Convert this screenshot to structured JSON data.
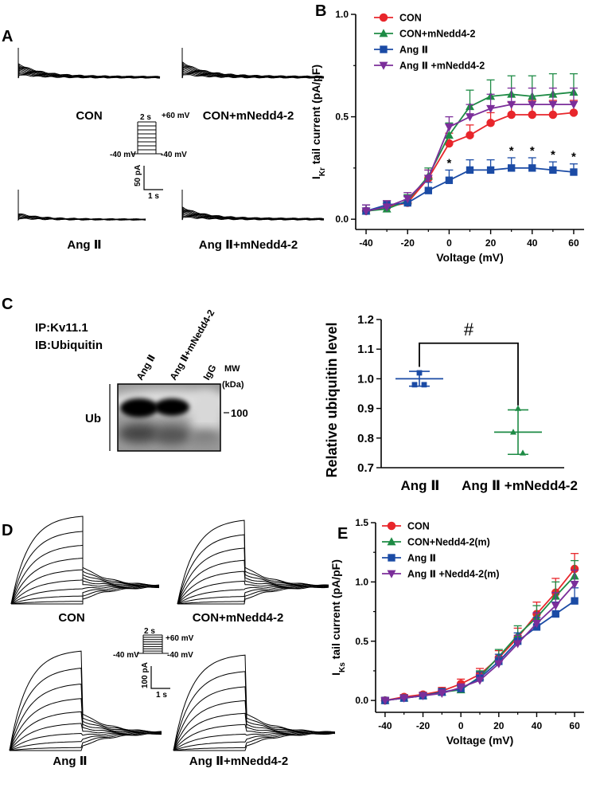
{
  "panels": {
    "A": "A",
    "B": "B",
    "C": "C",
    "D": "D",
    "E": "E"
  },
  "panelA": {
    "labels": [
      "CON",
      "CON+mNedd4-2",
      "Ang Ⅱ",
      "Ang Ⅱ+mNedd4-2"
    ],
    "protocol": {
      "duration": "2 s",
      "top": "+60 mV",
      "hold_left": "-40 mV",
      "hold_right": "-40 mV"
    },
    "scale": {
      "current": "50 pA",
      "time": "1 s"
    }
  },
  "panelD": {
    "labels": [
      "CON",
      "CON+mNedd4-2",
      "Ang Ⅱ",
      "Ang Ⅱ+mNedd4-2"
    ],
    "protocol": {
      "duration": "2 s",
      "top": "+60 mV",
      "hold_left": "-40 mV",
      "hold_right": "-40 mV"
    },
    "scale": {
      "current": "100 pA",
      "time": "1 s"
    }
  },
  "panelC": {
    "ip": "IP:Kv11.1",
    "ib": "IB:Ubiquitin",
    "lanes": [
      "Ang Ⅱ",
      "Ang Ⅱ+mNedd4-2",
      "IgG"
    ],
    "mw": "MW",
    "kda": "(kDa)",
    "marker": "100",
    "ub": "Ub"
  },
  "chart_data": [
    {
      "id": "B",
      "type": "line",
      "xlabel": "Voltage (mV)",
      "ylabel_main": "I",
      "ylabel_sub": "Kr",
      "ylabel_rest": " tail current (pA/pF)",
      "xlim": [
        -45,
        65
      ],
      "ylim": [
        -0.05,
        1.0
      ],
      "xticks": [
        -40,
        -20,
        0,
        20,
        40,
        60
      ],
      "yticks": [
        0.0,
        0.5,
        1.0
      ],
      "ytick_labels": [
        "0.0",
        "0.5",
        "1.0"
      ],
      "x": [
        -40,
        -30,
        -20,
        -10,
        0,
        10,
        20,
        30,
        40,
        50,
        60
      ],
      "significance": {
        "symbol": "*",
        "x": [
          0,
          30,
          40,
          50,
          60
        ]
      },
      "series": [
        {
          "name": "CON",
          "color": "#e8262b",
          "marker": "circle",
          "values": [
            0.04,
            0.06,
            0.08,
            0.2,
            0.37,
            0.41,
            0.47,
            0.51,
            0.51,
            0.51,
            0.52
          ],
          "err": [
            0.03,
            0.03,
            0.03,
            0.04,
            0.05,
            0.05,
            0.05,
            0.06,
            0.07,
            0.07,
            0.06
          ]
        },
        {
          "name": "CON+mNedd4-2",
          "color": "#1e8b45",
          "marker": "triangle",
          "values": [
            0.04,
            0.05,
            0.09,
            0.21,
            0.41,
            0.55,
            0.6,
            0.61,
            0.6,
            0.61,
            0.62
          ],
          "err": [
            0.03,
            0.03,
            0.03,
            0.04,
            0.06,
            0.08,
            0.08,
            0.09,
            0.1,
            0.1,
            0.09
          ]
        },
        {
          "name": "Ang Ⅱ",
          "color": "#1b4ba5",
          "marker": "square",
          "values": [
            0.04,
            0.07,
            0.08,
            0.14,
            0.19,
            0.24,
            0.24,
            0.25,
            0.25,
            0.24,
            0.23
          ],
          "err": [
            0.03,
            0.02,
            0.03,
            0.04,
            0.05,
            0.05,
            0.05,
            0.05,
            0.05,
            0.04,
            0.04
          ]
        },
        {
          "name": "Ang Ⅱ +mNedd4-2",
          "color": "#7b2e9a",
          "marker": "tri-down",
          "values": [
            0.04,
            0.06,
            0.1,
            0.2,
            0.45,
            0.5,
            0.54,
            0.56,
            0.56,
            0.56,
            0.56
          ],
          "err": [
            0.03,
            0.03,
            0.03,
            0.04,
            0.05,
            0.06,
            0.07,
            0.08,
            0.08,
            0.08,
            0.08
          ]
        }
      ]
    },
    {
      "id": "C",
      "type": "scatter",
      "title": "#",
      "ylabel": "Relative ubiquitin level",
      "ylim": [
        0.7,
        1.2
      ],
      "yticks": [
        0.7,
        0.8,
        0.9,
        1.0,
        1.1,
        1.2
      ],
      "ytick_labels": [
        "0.7",
        "0.8",
        "0.9",
        "1.0",
        "1.1",
        "1.2"
      ],
      "categories": [
        "Ang Ⅱ",
        "Ang Ⅱ +mNedd4-2"
      ],
      "groups": [
        {
          "color": "#1b4ba5",
          "marker": "square",
          "points": [
            1.02,
            0.98,
            0.98
          ],
          "mean": 1.0,
          "err": 0.025
        },
        {
          "color": "#1e8b45",
          "marker": "triangle",
          "points": [
            0.9,
            0.82,
            0.75
          ],
          "mean": 0.82,
          "err": 0.075
        }
      ]
    },
    {
      "id": "E",
      "type": "line",
      "xlabel": "Voltage (mV)",
      "ylabel_main": "I",
      "ylabel_sub": "Ks",
      "ylabel_rest": " tail current (pA/pF)",
      "xlim": [
        -45,
        65
      ],
      "ylim": [
        -0.1,
        1.5
      ],
      "xticks": [
        -40,
        -20,
        0,
        20,
        40,
        60
      ],
      "yticks": [
        0.0,
        0.5,
        1.0,
        1.5
      ],
      "ytick_labels": [
        "0.0",
        "0.5",
        "1.0",
        "1.5"
      ],
      "x": [
        -40,
        -30,
        -20,
        -10,
        0,
        10,
        20,
        30,
        40,
        50,
        60
      ],
      "series": [
        {
          "name": "CON",
          "color": "#e8262b",
          "marker": "circle",
          "values": [
            0.0,
            0.03,
            0.05,
            0.08,
            0.14,
            0.22,
            0.36,
            0.53,
            0.73,
            0.91,
            1.11
          ],
          "err": [
            0.02,
            0.02,
            0.02,
            0.03,
            0.04,
            0.05,
            0.06,
            0.08,
            0.1,
            0.12,
            0.13
          ]
        },
        {
          "name": "CON+Nedd4-2(m)",
          "color": "#1e8b45",
          "marker": "triangle",
          "values": [
            0.0,
            0.02,
            0.04,
            0.07,
            0.09,
            0.2,
            0.37,
            0.55,
            0.7,
            0.88,
            1.05
          ],
          "err": [
            0.02,
            0.02,
            0.02,
            0.03,
            0.03,
            0.05,
            0.06,
            0.08,
            0.1,
            0.12,
            0.13
          ]
        },
        {
          "name": "Ang Ⅱ",
          "color": "#1b4ba5",
          "marker": "square",
          "values": [
            0.0,
            0.02,
            0.04,
            0.07,
            0.1,
            0.19,
            0.33,
            0.5,
            0.62,
            0.73,
            0.84
          ],
          "err": [
            0.02,
            0.02,
            0.02,
            0.03,
            0.03,
            0.05,
            0.06,
            0.07,
            0.08,
            0.1,
            0.11
          ]
        },
        {
          "name": "Ang Ⅱ +Nedd4-2(m)",
          "color": "#7b2e9a",
          "marker": "tri-down",
          "values": [
            0.0,
            0.02,
            0.04,
            0.06,
            0.11,
            0.17,
            0.31,
            0.48,
            0.65,
            0.8,
            0.98
          ],
          "err": [
            0.02,
            0.02,
            0.02,
            0.03,
            0.03,
            0.05,
            0.06,
            0.07,
            0.09,
            0.11,
            0.12
          ]
        }
      ]
    }
  ]
}
